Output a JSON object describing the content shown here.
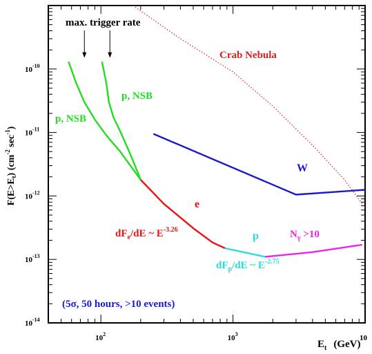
{
  "chart_data": {
    "type": "line",
    "x_scale": "log",
    "y_scale": "log",
    "xlim": [
      40,
      10000
    ],
    "ylim": [
      1e-14,
      1e-09
    ],
    "xlabel": "E_t (GeV)",
    "ylabel": "F(E>E_t) (cm^-2 sec^-1)",
    "x_ticks": [
      {
        "value": 100,
        "base": "10",
        "exp": "2"
      },
      {
        "value": 1000,
        "base": "10",
        "exp": "3"
      },
      {
        "value": 10000,
        "base": "10",
        "exp": ""
      }
    ],
    "y_ticks": [
      {
        "value": 1e-10,
        "base": "10",
        "exp": "-10"
      },
      {
        "value": 1e-11,
        "base": "10",
        "exp": "-11"
      },
      {
        "value": 1e-12,
        "base": "10",
        "exp": "-12"
      },
      {
        "value": 1e-13,
        "base": "10",
        "exp": "-13"
      },
      {
        "value": 1e-14,
        "base": "10",
        "exp": "-14"
      }
    ],
    "series": [
      {
        "key": "crab",
        "color": "#d62020",
        "dash": true,
        "points": [
          [
            175,
            1e-09
          ],
          [
            400,
            3e-10
          ],
          [
            1000,
            9e-11
          ],
          [
            2000,
            2.6e-11
          ],
          [
            4000,
            6.3e-12
          ],
          [
            7000,
            1.8e-12
          ],
          [
            10000,
            6.5e-13
          ]
        ]
      },
      {
        "key": "w",
        "color": "#1a1acc",
        "points": [
          [
            250,
            9.5e-12
          ],
          [
            3000,
            1.05e-12
          ],
          [
            10000,
            1.25e-12
          ]
        ]
      },
      {
        "key": "pnsb1",
        "color": "#22dd22",
        "points": [
          [
            57,
            1.3e-10
          ],
          [
            65,
            6e-11
          ],
          [
            75,
            3e-11
          ],
          [
            90,
            1.6e-11
          ],
          [
            110,
            9e-12
          ],
          [
            140,
            5e-12
          ],
          [
            200,
            1.8e-12
          ]
        ]
      },
      {
        "key": "pnsb2",
        "color": "#22dd22",
        "points": [
          [
            102,
            1.3e-10
          ],
          [
            110,
            6e-11
          ],
          [
            115,
            3e-11
          ],
          [
            125,
            1.7e-11
          ],
          [
            140,
            1.05e-11
          ],
          [
            155,
            6.5e-12
          ],
          [
            175,
            3.6e-12
          ],
          [
            200,
            1.8e-12
          ]
        ]
      },
      {
        "key": "e",
        "color": "#ee1111",
        "points": [
          [
            200,
            1.8e-12
          ],
          [
            300,
            7.5e-13
          ],
          [
            500,
            3.1e-13
          ],
          [
            700,
            1.85e-13
          ],
          [
            870,
            1.5e-13
          ]
        ]
      },
      {
        "key": "p",
        "color": "#22dddd",
        "points": [
          [
            870,
            1.5e-13
          ],
          [
            1750,
            1.1e-13
          ]
        ]
      },
      {
        "key": "ngamma",
        "color": "#ee22ee",
        "points": [
          [
            1750,
            1.1e-13
          ],
          [
            4000,
            1.3e-13
          ],
          [
            9500,
            1.7e-13
          ]
        ]
      }
    ],
    "arrows": [
      {
        "key": "arrow1",
        "x": 75,
        "y_from": 1e-09,
        "y_to": 1.5e-10
      },
      {
        "key": "arrow2",
        "x": 117,
        "y_from": 1e-09,
        "y_to": 1.5e-10
      }
    ],
    "annotations": {
      "max_trigger": "max. trigger rate",
      "crab": "Crab Nebula",
      "pnsb_upper": "p, NSB",
      "pnsb_lower": "p, NSB",
      "w": "W",
      "e": "e",
      "e_formula_a": "dF",
      "e_formula_sub": "e",
      "e_formula_b": "/dE ~ E",
      "e_formula_exp": "-3.26",
      "p": "p",
      "p_formula_a": "dF",
      "p_formula_sub": "p",
      "p_formula_b": "/dE ~ E",
      "p_formula_exp": "-2.75",
      "ngamma_a": "N",
      "ngamma_sub": "γ",
      "ngamma_b": " >10",
      "note": "(5σ, 50 hours, >10 events)"
    },
    "axis_text": {
      "ylabel_main": "F(E>E",
      "ylabel_sub": "t",
      "ylabel_mid": ") (cm",
      "ylabel_exp1": "-2",
      "ylabel_sec": " sec",
      "ylabel_exp2": "-1",
      "ylabel_end": ")",
      "xlabel_main": "E",
      "xlabel_sub": "t",
      "xlabel_unit": "(GeV)"
    }
  }
}
